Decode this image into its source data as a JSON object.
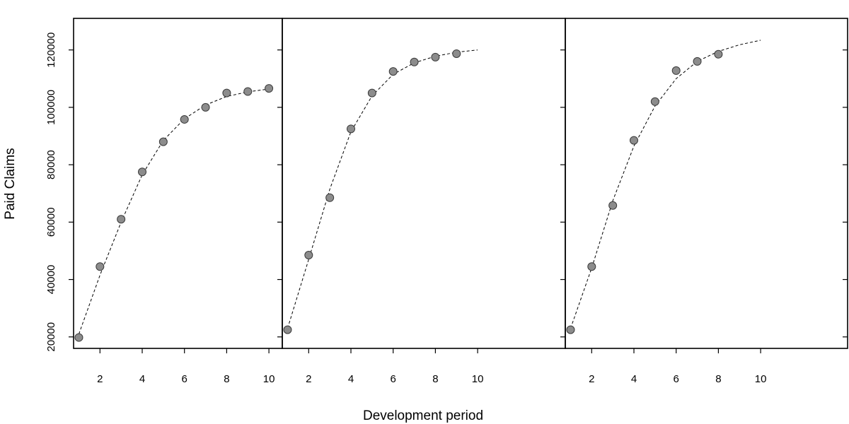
{
  "chart_data": {
    "type": "scatter",
    "layout": "three side-by-side panels sharing one y axis",
    "title": "",
    "xlabel": "Development period",
    "ylabel": "Paid Claims",
    "xlim": [
      0.75,
      10.6
    ],
    "ylim": [
      16000,
      131000
    ],
    "x_ticks": [
      2,
      4,
      6,
      8,
      10
    ],
    "x_tick_labels": [
      "2",
      "4",
      "6",
      "8",
      "10"
    ],
    "y_ticks": [
      20000,
      40000,
      60000,
      80000,
      100000,
      120000
    ],
    "y_tick_labels": [
      "20000",
      "40000",
      "60000",
      "80000",
      "100000",
      "120000"
    ],
    "point_color": "#8c8c8c",
    "line_style": "dashed",
    "panels": [
      {
        "points": {
          "x": [
            1,
            2,
            3,
            4,
            5,
            6,
            7,
            8,
            9,
            10
          ],
          "y": [
            19800,
            44500,
            61000,
            77500,
            88000,
            95800,
            100000,
            105000,
            105500,
            106600
          ]
        },
        "fitted": {
          "x": [
            1,
            2,
            3,
            4,
            5,
            6,
            7,
            8,
            9,
            10
          ],
          "y": [
            21000,
            41500,
            60000,
            76500,
            88500,
            96000,
            100800,
            103800,
            105400,
            106400
          ]
        }
      },
      {
        "points": {
          "x": [
            1,
            2,
            3,
            4,
            5,
            6,
            7,
            8,
            9
          ],
          "y": [
            22500,
            48500,
            68500,
            92500,
            105000,
            112500,
            115800,
            117500,
            118700
          ]
        },
        "fitted": {
          "x": [
            1,
            2,
            3,
            4,
            5,
            6,
            7,
            8,
            9,
            10
          ],
          "y": [
            23000,
            47000,
            71500,
            91500,
            104000,
            111500,
            115500,
            117800,
            119200,
            120000
          ]
        }
      },
      {
        "points": {
          "x": [
            1,
            2,
            3,
            4,
            5,
            6,
            7,
            8
          ],
          "y": [
            22500,
            44500,
            65800,
            88500,
            102000,
            112800,
            116000,
            118500
          ]
        },
        "fitted": {
          "x": [
            1,
            2,
            3,
            4,
            5,
            6,
            7,
            8,
            9,
            10
          ],
          "y": [
            23000,
            44000,
            67500,
            86500,
            100500,
            110000,
            116000,
            119500,
            121800,
            123400
          ]
        }
      }
    ]
  }
}
